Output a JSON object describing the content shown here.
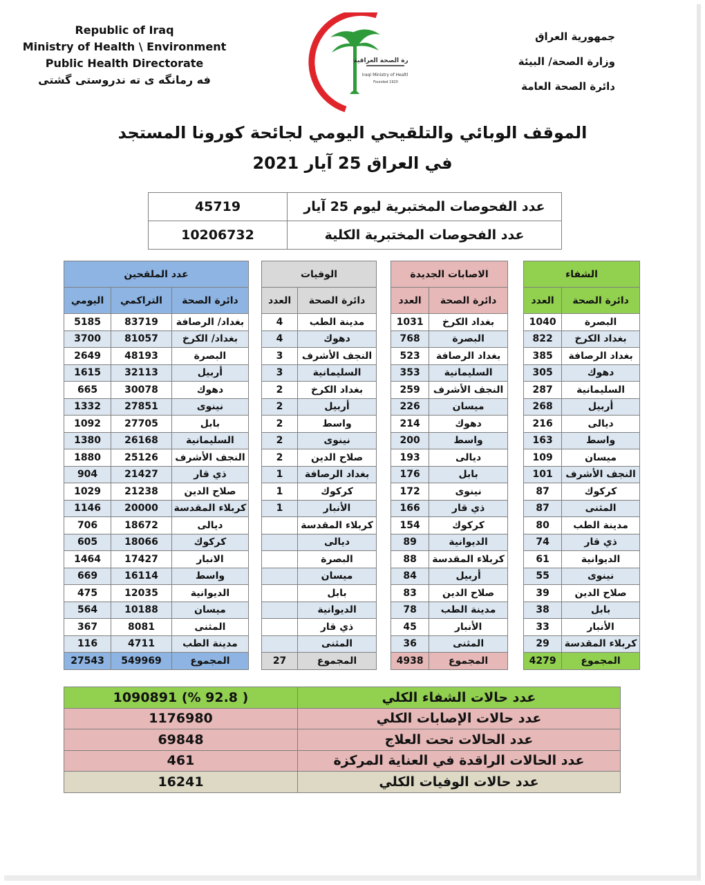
{
  "header": {
    "en": [
      "Republic of Iraq",
      "Ministry of Health \\ Environment",
      "Public Health Directorate",
      "فه رمانگه ی ته ندروستی گشتی"
    ],
    "ar": [
      "جمهورية العراق",
      "وزارة الصحة/ البيئة",
      "دائرة الصحة العامة"
    ],
    "logo_text": [
      "وزارة الصحة العراقية",
      "Iraqi Ministry of Health",
      "Founded 1920"
    ]
  },
  "title": {
    "line1": "الموقف الوبائي والتلقيحي اليومي لجائحة كورونا المستجد",
    "line2": "في العراق 25 آيار 2021"
  },
  "tests": [
    {
      "label": "عدد الفحوصات المختبرية  ليوم 25 آيار",
      "value": "45719"
    },
    {
      "label": "عدد الفحوصات المختبرية الكلية",
      "value": "10206732"
    }
  ],
  "colors": {
    "vaccine": "#8db4e2",
    "deaths": "#d9d9d9",
    "cases": "#e6b8b7",
    "recovery": "#92d050",
    "row_alt": "#dce6f1",
    "total_deaths": "#ddd9c4"
  },
  "recovery": {
    "title": "الشفاء",
    "cols": [
      "دائرة الصحة",
      "العدد"
    ],
    "rows": [
      [
        "البصرة",
        "1040"
      ],
      [
        "بغداد الكرخ",
        "822"
      ],
      [
        "بغداد الرصافة",
        "385"
      ],
      [
        "دهوك",
        "305"
      ],
      [
        "السليمانية",
        "287"
      ],
      [
        "أربيل",
        "268"
      ],
      [
        "ديالى",
        "216"
      ],
      [
        "واسط",
        "163"
      ],
      [
        "ميسان",
        "109"
      ],
      [
        "النجف الأشرف",
        "101"
      ],
      [
        "كركوك",
        "87"
      ],
      [
        "المثنى",
        "87"
      ],
      [
        "مدينة الطب",
        "80"
      ],
      [
        "ذي قار",
        "74"
      ],
      [
        "الديوانية",
        "61"
      ],
      [
        "نينوى",
        "55"
      ],
      [
        "صلاح الدين",
        "39"
      ],
      [
        "بابل",
        "38"
      ],
      [
        "الأنبار",
        "33"
      ],
      [
        "كربلاء المقدسة",
        "29"
      ]
    ],
    "total": [
      "المجموع",
      "4279"
    ]
  },
  "cases": {
    "title": "الاصابات الجديدة",
    "cols": [
      "دائرة الصحة",
      "العدد"
    ],
    "rows": [
      [
        "بغداد الكرخ",
        "1031"
      ],
      [
        "البصرة",
        "768"
      ],
      [
        "بغداد الرصافة",
        "523"
      ],
      [
        "السليمانية",
        "353"
      ],
      [
        "النجف الأشرف",
        "259"
      ],
      [
        "ميسان",
        "226"
      ],
      [
        "دهوك",
        "214"
      ],
      [
        "واسط",
        "200"
      ],
      [
        "ديالى",
        "193"
      ],
      [
        "بابل",
        "176"
      ],
      [
        "نينوى",
        "172"
      ],
      [
        "ذي قار",
        "166"
      ],
      [
        "كركوك",
        "154"
      ],
      [
        "الديوانية",
        "89"
      ],
      [
        "كربلاء المقدسة",
        "88"
      ],
      [
        "أربيل",
        "84"
      ],
      [
        "صلاح الدين",
        "83"
      ],
      [
        "مدينة الطب",
        "78"
      ],
      [
        "الأنبار",
        "45"
      ],
      [
        "المثنى",
        "36"
      ]
    ],
    "total": [
      "المجموع",
      "4938"
    ]
  },
  "deaths": {
    "title": "الوفيات",
    "cols": [
      "دائرة الصحة",
      "العدد"
    ],
    "rows": [
      [
        "مدينة الطب",
        "4"
      ],
      [
        "دهوك",
        "4"
      ],
      [
        "النجف الأشرف",
        "3"
      ],
      [
        "السليمانية",
        "3"
      ],
      [
        "بغداد الكرخ",
        "2"
      ],
      [
        "أربيل",
        "2"
      ],
      [
        "واسط",
        "2"
      ],
      [
        "نينوى",
        "2"
      ],
      [
        "صلاح الدين",
        "2"
      ],
      [
        "بغداد الرصافة",
        "1"
      ],
      [
        "كركوك",
        "1"
      ],
      [
        "الأنبار",
        "1"
      ],
      [
        "كربلاء المقدسة",
        ""
      ],
      [
        "ديالى",
        ""
      ],
      [
        "البصرة",
        ""
      ],
      [
        "ميسان",
        ""
      ],
      [
        "بابل",
        ""
      ],
      [
        "الديوانية",
        ""
      ],
      [
        "ذي قار",
        ""
      ],
      [
        "المثنى",
        ""
      ]
    ],
    "total": [
      "المجموع",
      "27"
    ]
  },
  "vaccine": {
    "title": "عدد الملقحين",
    "cols": [
      "دائرة الصحة",
      "التراكمي",
      "اليومي"
    ],
    "rows": [
      [
        "بغداد/ الرصافة",
        "83719",
        "5185"
      ],
      [
        "بغداد/ الكرخ",
        "81057",
        "3700"
      ],
      [
        "البصرة",
        "48193",
        "2649"
      ],
      [
        "أربيل",
        "32113",
        "1615"
      ],
      [
        "دهوك",
        "30078",
        "665"
      ],
      [
        "نينوى",
        "27851",
        "1332"
      ],
      [
        "بابل",
        "27705",
        "1092"
      ],
      [
        "السليمانية",
        "26168",
        "1380"
      ],
      [
        "النجف الأشرف",
        "25126",
        "1880"
      ],
      [
        "ذي قار",
        "21427",
        "904"
      ],
      [
        "صلاح الدين",
        "21238",
        "1029"
      ],
      [
        "كربلاء المقدسة",
        "20000",
        "1146"
      ],
      [
        "ديالى",
        "18672",
        "706"
      ],
      [
        "كركوك",
        "18066",
        "605"
      ],
      [
        "الانبار",
        "17427",
        "1464"
      ],
      [
        "واسط",
        "16114",
        "669"
      ],
      [
        "الديوانية",
        "12035",
        "475"
      ],
      [
        "ميسان",
        "10188",
        "564"
      ],
      [
        "المثنى",
        "8081",
        "367"
      ],
      [
        "مدينة الطب",
        "4711",
        "116"
      ]
    ],
    "total": [
      "المجموع",
      "549969",
      "27543"
    ]
  },
  "summary": [
    {
      "label": "عدد حالات الشفاء الكلي",
      "value": "1090891  (% 92.8 )",
      "color": "#92d050"
    },
    {
      "label": "عدد حالات الإصابات الكلي",
      "value": "1176980",
      "color": "#e6b8b7"
    },
    {
      "label": "عدد الحالات تحت العلاج",
      "value": "69848",
      "color": "#e6b8b7"
    },
    {
      "label": "عدد الحالات الراقدة في العناية المركزة",
      "value": "461",
      "color": "#e6b8b7"
    },
    {
      "label": "عدد حالات الوفيات الكلي",
      "value": "16241",
      "color": "#ddd9c4"
    }
  ]
}
